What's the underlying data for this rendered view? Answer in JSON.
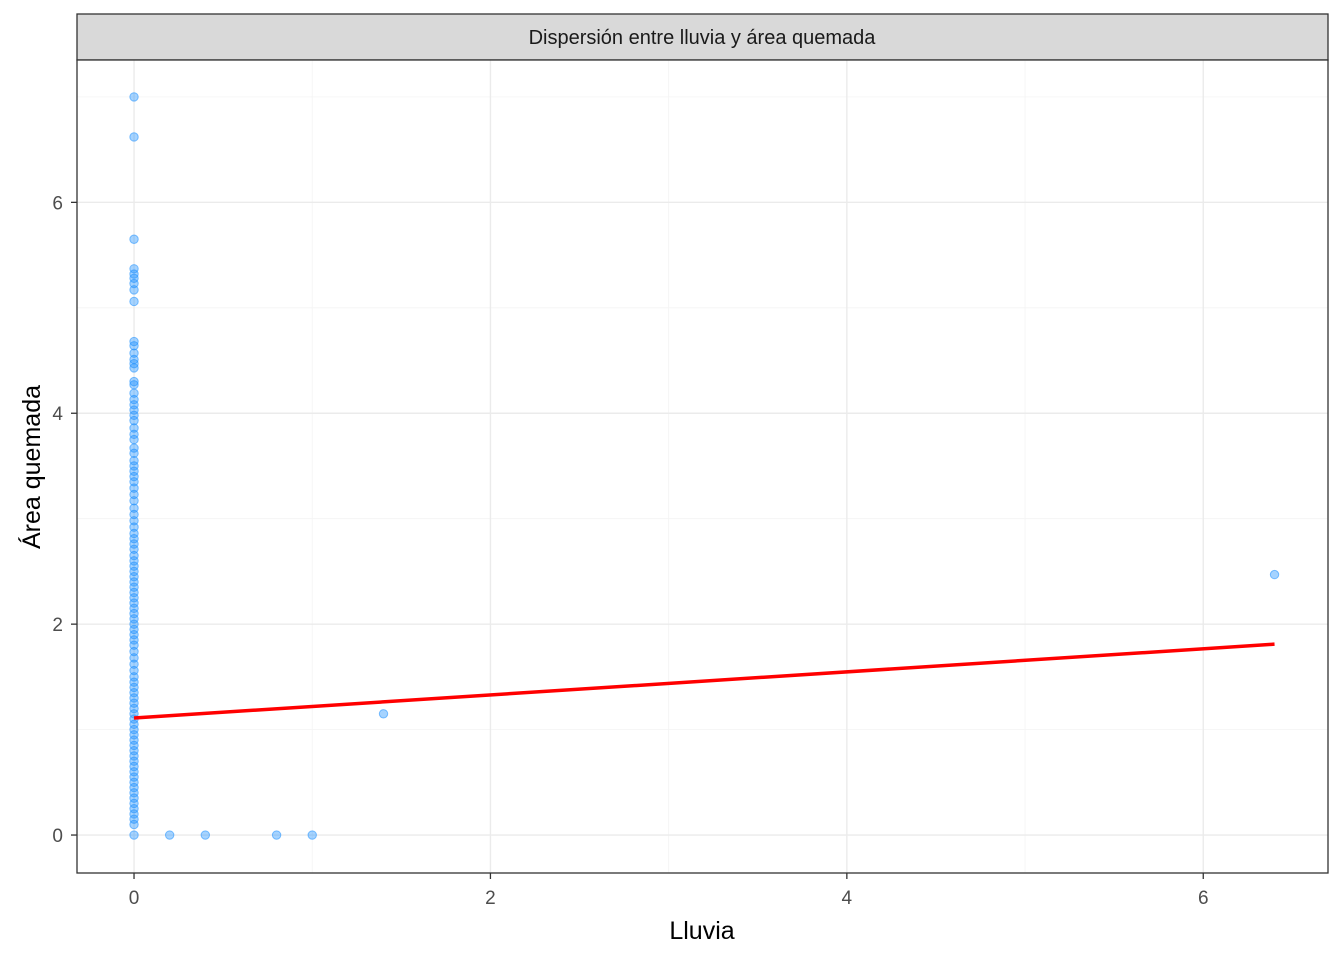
{
  "chart_data": {
    "type": "scatter",
    "title": "Dispersión entre lluvia y área quemada",
    "xlabel": "Lluvia",
    "ylabel": "Área quemada",
    "xlim": [
      -0.32,
      6.7
    ],
    "ylim": [
      -0.36,
      7.35
    ],
    "x_ticks": [
      "0",
      "2",
      "4",
      "6"
    ],
    "y_ticks": [
      "0",
      "2",
      "4",
      "6"
    ],
    "grid": true,
    "colors": {
      "points": "#1e90ff",
      "fit_line": "#ff0000",
      "strip": "#d9d9d9"
    },
    "points": [
      [
        0,
        7.0
      ],
      [
        0,
        6.62
      ],
      [
        0,
        5.65
      ],
      [
        0,
        5.37
      ],
      [
        0,
        5.32
      ],
      [
        0,
        5.28
      ],
      [
        0,
        5.23
      ],
      [
        0,
        5.17
      ],
      [
        0,
        5.06
      ],
      [
        0,
        4.68
      ],
      [
        0,
        4.64
      ],
      [
        0,
        4.57
      ],
      [
        0,
        4.51
      ],
      [
        0,
        4.47
      ],
      [
        0,
        4.43
      ],
      [
        0,
        4.3
      ],
      [
        0,
        4.27
      ],
      [
        0,
        4.19
      ],
      [
        0,
        4.13
      ],
      [
        0,
        4.08
      ],
      [
        0,
        4.03
      ],
      [
        0,
        3.98
      ],
      [
        0,
        3.93
      ],
      [
        0,
        3.86
      ],
      [
        0,
        3.8
      ],
      [
        0,
        3.75
      ],
      [
        0,
        3.67
      ],
      [
        0,
        3.62
      ],
      [
        0,
        3.55
      ],
      [
        0,
        3.5
      ],
      [
        0,
        3.45
      ],
      [
        0,
        3.4
      ],
      [
        0,
        3.35
      ],
      [
        0,
        3.29
      ],
      [
        0,
        3.23
      ],
      [
        0,
        3.17
      ],
      [
        0,
        3.1
      ],
      [
        0,
        3.04
      ],
      [
        0,
        2.98
      ],
      [
        0,
        2.92
      ],
      [
        0,
        2.86
      ],
      [
        0,
        2.81
      ],
      [
        0,
        2.76
      ],
      [
        0,
        2.71
      ],
      [
        0,
        2.65
      ],
      [
        0,
        2.6
      ],
      [
        0,
        2.55
      ],
      [
        0,
        2.5
      ],
      [
        0,
        2.45
      ],
      [
        0,
        2.4
      ],
      [
        0,
        2.35
      ],
      [
        0,
        2.3
      ],
      [
        0,
        2.25
      ],
      [
        0,
        2.2
      ],
      [
        0,
        2.15
      ],
      [
        0,
        2.1
      ],
      [
        0,
        2.05
      ],
      [
        0,
        2.0
      ],
      [
        0,
        1.95
      ],
      [
        0,
        1.9
      ],
      [
        0,
        1.85
      ],
      [
        0,
        1.8
      ],
      [
        0,
        1.74
      ],
      [
        0,
        1.68
      ],
      [
        0,
        1.62
      ],
      [
        0,
        1.56
      ],
      [
        0,
        1.5
      ],
      [
        0,
        1.45
      ],
      [
        0,
        1.4
      ],
      [
        0,
        1.35
      ],
      [
        0,
        1.3
      ],
      [
        0,
        1.25
      ],
      [
        0,
        1.2
      ],
      [
        0,
        1.15
      ],
      [
        0,
        1.1
      ],
      [
        0,
        1.05
      ],
      [
        0,
        1.0
      ],
      [
        0,
        0.95
      ],
      [
        0,
        0.9
      ],
      [
        0,
        0.85
      ],
      [
        0,
        0.8
      ],
      [
        0,
        0.75
      ],
      [
        0,
        0.7
      ],
      [
        0,
        0.65
      ],
      [
        0,
        0.6
      ],
      [
        0,
        0.55
      ],
      [
        0,
        0.5
      ],
      [
        0,
        0.45
      ],
      [
        0,
        0.4
      ],
      [
        0,
        0.35
      ],
      [
        0,
        0.3
      ],
      [
        0,
        0.25
      ],
      [
        0,
        0.2
      ],
      [
        0,
        0.15
      ],
      [
        0,
        0.1
      ],
      [
        0,
        0.0
      ],
      [
        0.2,
        0.0
      ],
      [
        0.4,
        0.0
      ],
      [
        0.8,
        0.0
      ],
      [
        1.0,
        0.0
      ],
      [
        1.4,
        1.15
      ],
      [
        6.4,
        2.47
      ]
    ],
    "fit_line": {
      "x": [
        0,
        6.4
      ],
      "y": [
        1.11,
        1.81
      ]
    }
  }
}
